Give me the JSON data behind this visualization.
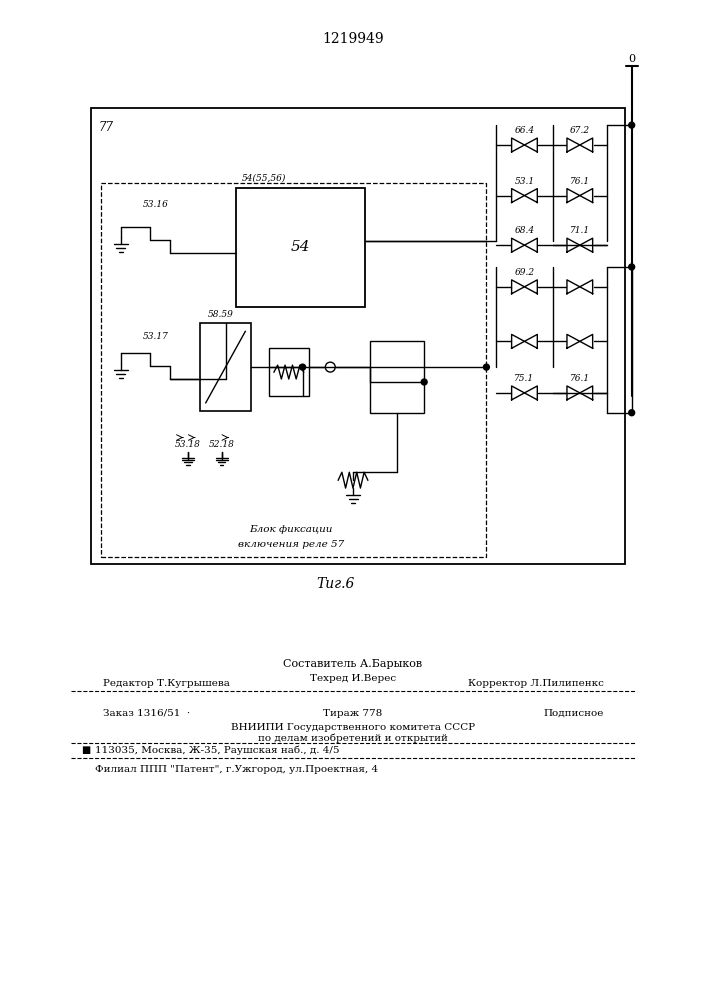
{
  "title": "1219949",
  "fig_label": "Τиг.6",
  "background_color": "#ffffff",
  "text_color": "#000000",
  "line_color": "#000000",
  "page_width": 7.07,
  "page_height": 10.0,
  "diagram": {
    "label_77": "77",
    "power_label": "0",
    "block_54_label": "54",
    "block_54_label_above": "54(55,56)",
    "block_fixation_label1": "Блок фиксации",
    "block_fixation_label2": "включения реле 57",
    "label_5316": "53.16",
    "label_5317": "53.17",
    "label_5859": "58.59",
    "label_664": "66.4",
    "label_672": "67.2",
    "label_531": "53.1",
    "label_761a": "76.1",
    "label_684": "68.4",
    "label_711": "71.1",
    "label_692": "69.2",
    "label_751": "75.1",
    "label_761b": "76.1",
    "label_5318": "53.18",
    "label_5218": "52.18",
    "annotation_bottom1": "Составитель А.Барыков",
    "editor_left": "Редактор Т.Кугрышева",
    "editor_mid": "Техред И.Верес",
    "editor_right": "Корректор Л.Пилипенкс",
    "order_left": "Заказ 1316/51  ·",
    "order_mid": "Тираж 778",
    "order_right": "Подписное",
    "vnipi_line1": "ВНИИПИ Государственного комитета СССР",
    "vnipi_line2": "по делам изобретений и открытий",
    "vnipi_line3": "113035, Москва, Ж-35, Раушская наб., д. 4/5",
    "filial_line": "Филиал ППП \"Патент\", г.Ужгород, ул.Проектная, 4"
  }
}
